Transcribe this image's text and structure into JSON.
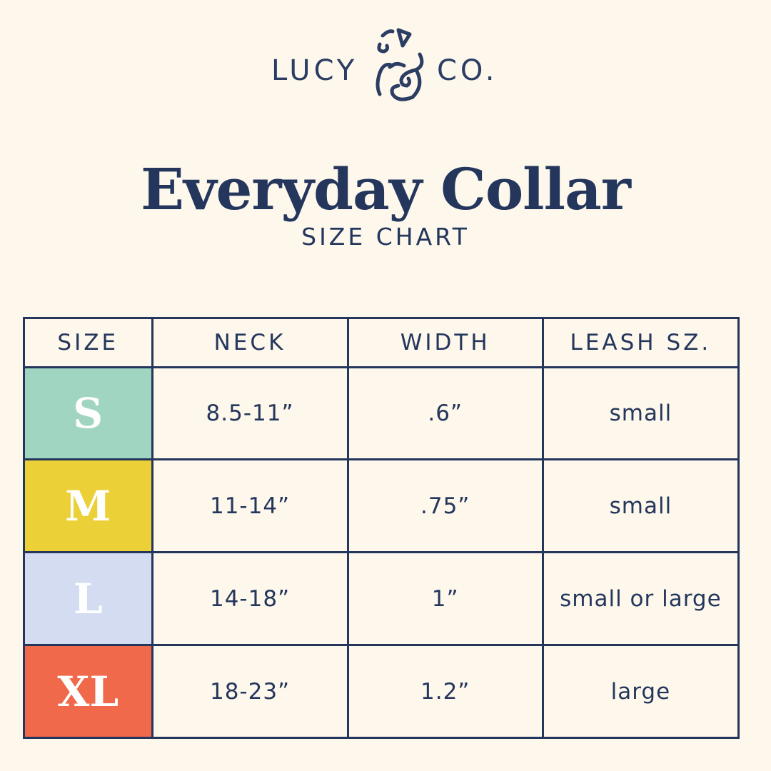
{
  "brand": {
    "left": "LUCY",
    "right": "CO.",
    "logo_mark": "ampersand-dog-icon"
  },
  "title": "Everyday Collar",
  "subtitle": "SIZE CHART",
  "table": {
    "headers": [
      "SIZE",
      "NECK",
      "WIDTH",
      "LEASH SZ."
    ],
    "rows": [
      {
        "size": "S",
        "neck": "8.5-11”",
        "width": ".6”",
        "leash": "small",
        "color": "#9fd5c1"
      },
      {
        "size": "M",
        "neck": "11-14”",
        "width": ".75”",
        "leash": "small",
        "color": "#ecd038"
      },
      {
        "size": "L",
        "neck": "14-18”",
        "width": "1”",
        "leash": "small or large",
        "color": "#d3dcf0"
      },
      {
        "size": "XL",
        "neck": "18-23”",
        "width": "1.2”",
        "leash": "large",
        "color": "#f0694b"
      }
    ]
  },
  "colors": {
    "navy": "#24365c",
    "background": "#fdf7ec"
  }
}
